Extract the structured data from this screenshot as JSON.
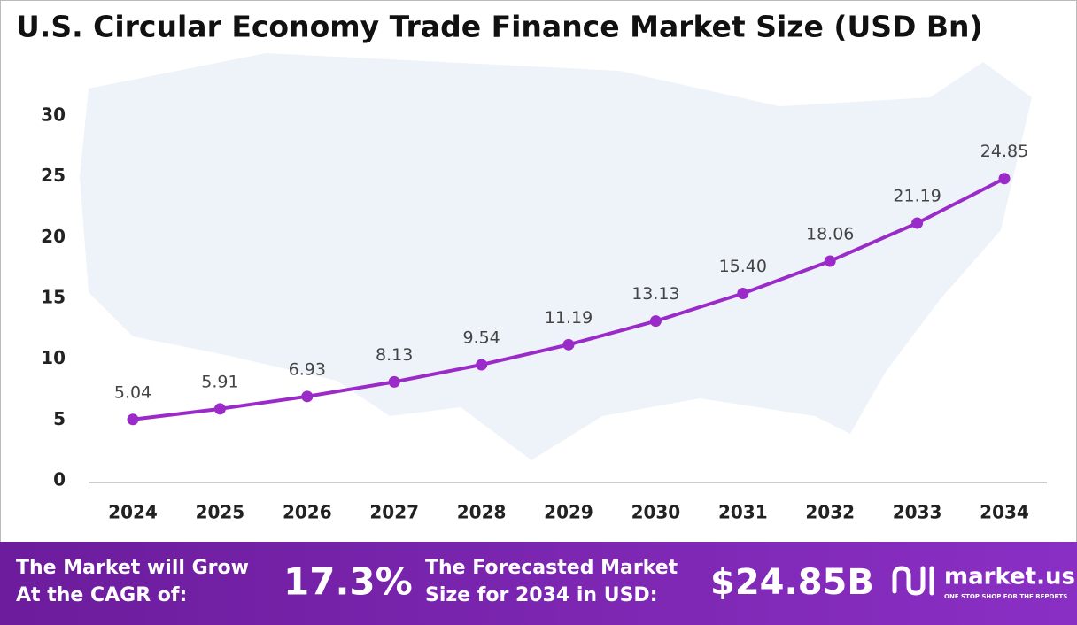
{
  "chart_data": {
    "type": "line",
    "title": "U.S. Circular Economy Trade Finance Market Size (USD Bn)",
    "categories": [
      "2024",
      "2025",
      "2026",
      "2027",
      "2028",
      "2029",
      "2030",
      "2031",
      "2032",
      "2033",
      "2034"
    ],
    "values": [
      5.04,
      5.91,
      6.93,
      8.13,
      9.54,
      11.19,
      13.13,
      15.4,
      18.06,
      21.19,
      24.85
    ],
    "value_labels": [
      "5.04",
      "5.91",
      "6.93",
      "8.13",
      "9.54",
      "11.19",
      "13.13",
      "15.40",
      "18.06",
      "21.19",
      "24.85"
    ],
    "color": "#9b2bc9",
    "ylim": [
      0,
      30
    ],
    "yticks": [
      0,
      5,
      10,
      15,
      20,
      25,
      30
    ],
    "grid": false
  },
  "footer": {
    "cagr_label": [
      "The Market will Grow",
      "At the CAGR of:"
    ],
    "cagr_value": "17.3%",
    "forecast_label": [
      "The Forecasted Market",
      "Size for 2034 in USD:"
    ],
    "forecast_value": "$24.85B",
    "brand": "market.us",
    "tagline": "ONE STOP SHOP FOR THE REPORTS"
  }
}
